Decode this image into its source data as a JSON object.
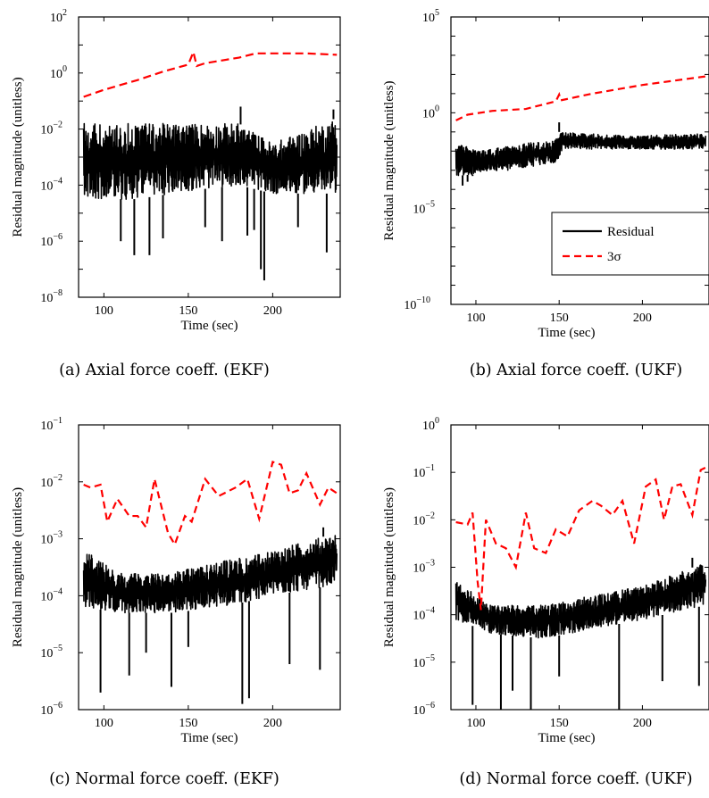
{
  "chart_data": [
    {
      "id": "a",
      "type": "line",
      "caption": "(a) Axial force coeff. (EKF)",
      "xlabel": "Time (sec)",
      "ylabel": "Residual magnitude (unitless)",
      "xlim": [
        85,
        240
      ],
      "ylim_log10": [
        -8,
        2
      ],
      "y_scale": "log",
      "x_ticks": [
        100,
        150,
        200
      ],
      "y_ticks": [
        {
          "mant": "10",
          "exp": "2",
          "v": 2
        },
        {
          "mant": "10",
          "exp": "0",
          "v": 0
        },
        {
          "mant": "10",
          "exp": "−2",
          "v": -2
        },
        {
          "mant": "10",
          "exp": "−4",
          "v": -4
        },
        {
          "mant": "10",
          "exp": "−6",
          "v": -6
        },
        {
          "mant": "10",
          "exp": "−8",
          "v": -8
        }
      ],
      "legend": null,
      "series": [
        {
          "kind": "residual",
          "color": "#000000",
          "dash": "none",
          "x_range": [
            88,
            238
          ],
          "band_log10": [
            [
              88,
              -4.5,
              -1.8
            ],
            [
              120,
              -4.5,
              -1.8
            ],
            [
              150,
              -4.2,
              -1.8
            ],
            [
              180,
              -4.0,
              -1.8
            ],
            [
              200,
              -4.3,
              -2.5
            ],
            [
              238,
              -4.3,
              -1.6
            ]
          ],
          "spikes": [
            [
              110,
              -6.0
            ],
            [
              118,
              -6.5
            ],
            [
              127,
              -6.5
            ],
            [
              135,
              -5.9
            ],
            [
              160,
              -5.5
            ],
            [
              170,
              -6.0
            ],
            [
              185,
              -5.8
            ],
            [
              189,
              -5.6
            ],
            [
              193,
              -7.0
            ],
            [
              195,
              -7.4
            ],
            [
              215,
              -5.5
            ],
            [
              232,
              -6.4
            ],
            [
              181,
              -1.2
            ],
            [
              236,
              -1.3
            ]
          ]
        },
        {
          "kind": "3sigma",
          "color": "#ff0000",
          "dash": "9,5",
          "points": [
            [
              88,
              -0.85
            ],
            [
              100,
              -0.6
            ],
            [
              120,
              -0.25
            ],
            [
              135,
              0.05
            ],
            [
              150,
              0.3
            ],
            [
              153,
              0.75
            ],
            [
              155,
              0.25
            ],
            [
              160,
              0.35
            ],
            [
              170,
              0.45
            ],
            [
              180,
              0.55
            ],
            [
              190,
              0.7
            ],
            [
              200,
              0.7
            ],
            [
              220,
              0.7
            ],
            [
              238,
              0.65
            ]
          ]
        }
      ]
    },
    {
      "id": "b",
      "type": "line",
      "caption": "(b) Axial force coeff. (UKF)",
      "xlabel": "Time (sec)",
      "ylabel": "Residual magnitude (unitless)",
      "xlim": [
        85,
        240
      ],
      "ylim_log10": [
        -10,
        5
      ],
      "y_scale": "log",
      "x_ticks": [
        100,
        150,
        200
      ],
      "y_ticks": [
        {
          "mant": "10",
          "exp": "5",
          "v": 5
        },
        {
          "mant": "10",
          "exp": "0",
          "v": 0
        },
        {
          "mant": "10",
          "exp": "−5",
          "v": -5
        },
        {
          "mant": "10",
          "exp": "−10",
          "v": -10
        }
      ],
      "legend": {
        "position": "center-right",
        "items": [
          {
            "label": "Residual",
            "color": "#000000",
            "dash": "none"
          },
          {
            "label": "3σ",
            "color": "#ff0000",
            "dash": "8,5"
          }
        ]
      },
      "series": [
        {
          "kind": "residual",
          "color": "#000000",
          "dash": "none",
          "x_range": [
            88,
            238
          ],
          "band_log10": [
            [
              88,
              -3.3,
              -1.5
            ],
            [
              100,
              -3.2,
              -2.0
            ],
            [
              120,
              -3.0,
              -1.7
            ],
            [
              148,
              -2.6,
              -1.4
            ],
            [
              150,
              -2.4,
              -1.0
            ],
            [
              152,
              -1.9,
              -1.0
            ],
            [
              190,
              -1.9,
              -1.2
            ],
            [
              238,
              -1.9,
              -1.1
            ]
          ],
          "spikes": [
            [
              92,
              -3.8
            ],
            [
              95,
              -3.6
            ],
            [
              98,
              -3.3
            ],
            [
              150,
              -0.5
            ]
          ]
        },
        {
          "kind": "3sigma",
          "color": "#ff0000",
          "dash": "8,5",
          "points": [
            [
              88,
              -0.4
            ],
            [
              95,
              -0.1
            ],
            [
              110,
              0.1
            ],
            [
              130,
              0.2
            ],
            [
              148,
              0.6
            ],
            [
              150,
              0.95
            ],
            [
              151,
              0.65
            ],
            [
              170,
              1.0
            ],
            [
              200,
              1.45
            ],
            [
              238,
              1.9
            ]
          ]
        }
      ]
    },
    {
      "id": "c",
      "type": "line",
      "caption": "(c) Normal force coeff. (EKF)",
      "xlabel": "Time (sec)",
      "ylabel": "Residual magnitude (unitless)",
      "xlim": [
        85,
        240
      ],
      "ylim_log10": [
        -6,
        -1
      ],
      "y_scale": "log",
      "x_ticks": [
        100,
        150,
        200
      ],
      "y_ticks": [
        {
          "mant": "10",
          "exp": "−1",
          "v": -1
        },
        {
          "mant": "10",
          "exp": "−2",
          "v": -2
        },
        {
          "mant": "10",
          "exp": "−3",
          "v": -3
        },
        {
          "mant": "10",
          "exp": "−4",
          "v": -4
        },
        {
          "mant": "10",
          "exp": "−5",
          "v": -5
        },
        {
          "mant": "10",
          "exp": "−6",
          "v": -6
        }
      ],
      "legend": null,
      "series": [
        {
          "kind": "residual",
          "color": "#000000",
          "dash": "none",
          "x_range": [
            88,
            238
          ],
          "band_log10": [
            [
              88,
              -4.2,
              -3.2
            ],
            [
              110,
              -4.3,
              -3.6
            ],
            [
              140,
              -4.3,
              -3.6
            ],
            [
              170,
              -4.2,
              -3.4
            ],
            [
              200,
              -4.0,
              -3.2
            ],
            [
              238,
              -3.8,
              -2.9
            ]
          ],
          "spikes": [
            [
              98,
              -5.7
            ],
            [
              115,
              -5.4
            ],
            [
              125,
              -5.0
            ],
            [
              140,
              -5.6
            ],
            [
              150,
              -4.9
            ],
            [
              182,
              -5.9
            ],
            [
              186,
              -5.8
            ],
            [
              210,
              -5.2
            ],
            [
              228,
              -5.3
            ],
            [
              230,
              -2.8
            ]
          ]
        },
        {
          "kind": "3sigma",
          "color": "#ff0000",
          "dash": "8,5",
          "points": [
            [
              88,
              -2.05
            ],
            [
              92,
              -2.1
            ],
            [
              98,
              -2.05
            ],
            [
              102,
              -2.7
            ],
            [
              108,
              -2.3
            ],
            [
              115,
              -2.6
            ],
            [
              120,
              -2.6
            ],
            [
              125,
              -2.8
            ],
            [
              130,
              -1.95
            ],
            [
              138,
              -2.9
            ],
            [
              142,
              -3.1
            ],
            [
              148,
              -2.6
            ],
            [
              152,
              -2.7
            ],
            [
              160,
              -1.95
            ],
            [
              168,
              -2.25
            ],
            [
              178,
              -2.1
            ],
            [
              185,
              -1.95
            ],
            [
              192,
              -2.65
            ],
            [
              200,
              -1.65
            ],
            [
              205,
              -1.7
            ],
            [
              210,
              -2.2
            ],
            [
              215,
              -2.15
            ],
            [
              220,
              -1.85
            ],
            [
              228,
              -2.4
            ],
            [
              233,
              -2.1
            ],
            [
              238,
              -2.2
            ]
          ]
        }
      ]
    },
    {
      "id": "d",
      "type": "line",
      "caption": "(d) Normal force coeff. (UKF)",
      "xlabel": "Time (sec)",
      "ylabel": "Residual magnitude (unitless)",
      "xlim": [
        85,
        240
      ],
      "ylim_log10": [
        -6,
        0
      ],
      "y_scale": "log",
      "x_ticks": [
        100,
        150,
        200
      ],
      "y_ticks": [
        {
          "mant": "10",
          "exp": "0",
          "v": 0
        },
        {
          "mant": "10",
          "exp": "−1",
          "v": -1
        },
        {
          "mant": "10",
          "exp": "−2",
          "v": -2
        },
        {
          "mant": "10",
          "exp": "−3",
          "v": -3
        },
        {
          "mant": "10",
          "exp": "−4",
          "v": -4
        },
        {
          "mant": "10",
          "exp": "−5",
          "v": -5
        },
        {
          "mant": "10",
          "exp": "−6",
          "v": -6
        }
      ],
      "legend": null,
      "series": [
        {
          "kind": "residual",
          "color": "#000000",
          "dash": "none",
          "x_range": [
            88,
            238
          ],
          "band_log10": [
            [
              88,
              -4.1,
              -3.3
            ],
            [
              110,
              -4.4,
              -3.8
            ],
            [
              140,
              -4.5,
              -3.8
            ],
            [
              170,
              -4.3,
              -3.6
            ],
            [
              200,
              -4.1,
              -3.4
            ],
            [
              238,
              -3.8,
              -2.9
            ]
          ],
          "spikes": [
            [
              98,
              -5.9
            ],
            [
              115,
              -6.0
            ],
            [
              122,
              -5.6
            ],
            [
              133,
              -6.0
            ],
            [
              150,
              -5.3
            ],
            [
              186,
              -6.0
            ],
            [
              212,
              -5.4
            ],
            [
              234,
              -5.5
            ],
            [
              230,
              -2.8
            ]
          ]
        },
        {
          "kind": "3sigma",
          "color": "#ff0000",
          "dash": "8,5",
          "points": [
            [
              88,
              -2.05
            ],
            [
              95,
              -2.1
            ],
            [
              98,
              -1.85
            ],
            [
              101,
              -3.3
            ],
            [
              103,
              -3.9
            ],
            [
              106,
              -2.0
            ],
            [
              112,
              -2.5
            ],
            [
              118,
              -2.6
            ],
            [
              124,
              -3.0
            ],
            [
              130,
              -1.85
            ],
            [
              135,
              -2.6
            ],
            [
              142,
              -2.7
            ],
            [
              148,
              -2.2
            ],
            [
              155,
              -2.35
            ],
            [
              162,
              -1.8
            ],
            [
              170,
              -1.6
            ],
            [
              175,
              -1.7
            ],
            [
              182,
              -1.9
            ],
            [
              188,
              -1.6
            ],
            [
              195,
              -2.5
            ],
            [
              202,
              -1.3
            ],
            [
              208,
              -1.15
            ],
            [
              213,
              -2.0
            ],
            [
              218,
              -1.3
            ],
            [
              223,
              -1.25
            ],
            [
              230,
              -1.9
            ],
            [
              235,
              -0.95
            ],
            [
              238,
              -0.9
            ]
          ]
        }
      ]
    }
  ]
}
